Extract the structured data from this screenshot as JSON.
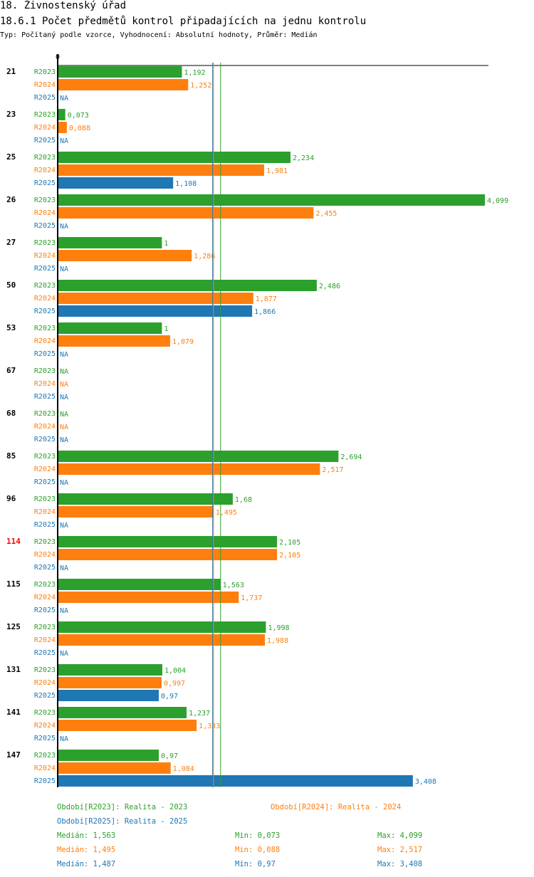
{
  "header": {
    "title": "18. Živnostenský úřad",
    "subtitle": "18.6.1 Počet předmětů kontrol připadajících na jednu kontrolu",
    "info": "Typ: Počítaný podle vzorce, Vyhodnocení: Absolutní hodnoty, Průměr: Medián"
  },
  "chart_data": {
    "type": "bar",
    "orientation": "horizontal",
    "axis_tick": "0",
    "xlim": [
      0,
      4.099
    ],
    "categories": [
      "21",
      "23",
      "25",
      "26",
      "27",
      "50",
      "53",
      "67",
      "68",
      "85",
      "96",
      "114",
      "115",
      "125",
      "131",
      "141",
      "147"
    ],
    "highlight_category": "114",
    "series": [
      {
        "name": "R2023",
        "color": "#2ca02c",
        "values": [
          1.192,
          0.073,
          2.234,
          4.099,
          1,
          2.486,
          1,
          null,
          null,
          2.694,
          1.68,
          2.105,
          1.563,
          1.998,
          1.004,
          1.237,
          0.97
        ],
        "labels": [
          "1,192",
          "0,073",
          "2,234",
          "4,099",
          "1",
          "2,486",
          "1",
          "NA",
          "NA",
          "2,694",
          "1,68",
          "2,105",
          "1,563",
          "1,998",
          "1,004",
          "1,237",
          "0,97"
        ],
        "median": 1.563
      },
      {
        "name": "R2024",
        "color": "#ff7f0e",
        "values": [
          1.252,
          0.088,
          1.981,
          2.455,
          1.286,
          1.877,
          1.079,
          null,
          null,
          2.517,
          1.495,
          2.105,
          1.737,
          1.988,
          0.997,
          1.333,
          1.084
        ],
        "labels": [
          "1,252",
          "0,088",
          "1,981",
          "2,455",
          "1,286",
          "1,877",
          "1,079",
          "NA",
          "NA",
          "2,517",
          "1,495",
          "2,105",
          "1,737",
          "1,988",
          "0,997",
          "1,333",
          "1,084"
        ],
        "median": 1.495
      },
      {
        "name": "R2025",
        "color": "#1f77b4",
        "values": [
          null,
          null,
          1.108,
          null,
          null,
          1.866,
          null,
          null,
          null,
          null,
          null,
          null,
          null,
          null,
          0.97,
          null,
          3.408
        ],
        "labels": [
          "NA",
          "NA",
          "1,108",
          "NA",
          "NA",
          "1,866",
          "NA",
          "NA",
          "NA",
          "NA",
          "NA",
          "NA",
          "NA",
          "NA",
          "0,97",
          "NA",
          "3,408"
        ],
        "median": 1.487
      }
    ]
  },
  "legend": {
    "r2023": "Období[R2023]: Realita - 2023",
    "r2024": "Období[R2024]: Realita - 2024",
    "r2025": "Období[R2025]: Realita - 2025",
    "stats": [
      {
        "median": "Medián: 1,563",
        "min": "Min: 0,073",
        "max": "Max: 4,099",
        "color": "#2ca02c"
      },
      {
        "median": "Medián: 1,495",
        "min": "Min: 0,088",
        "max": "Max: 2,517",
        "color": "#ff7f0e"
      },
      {
        "median": "Medián: 1,487",
        "min": "Min: 0,97",
        "max": "Max: 3,408",
        "color": "#1f77b4"
      }
    ]
  }
}
